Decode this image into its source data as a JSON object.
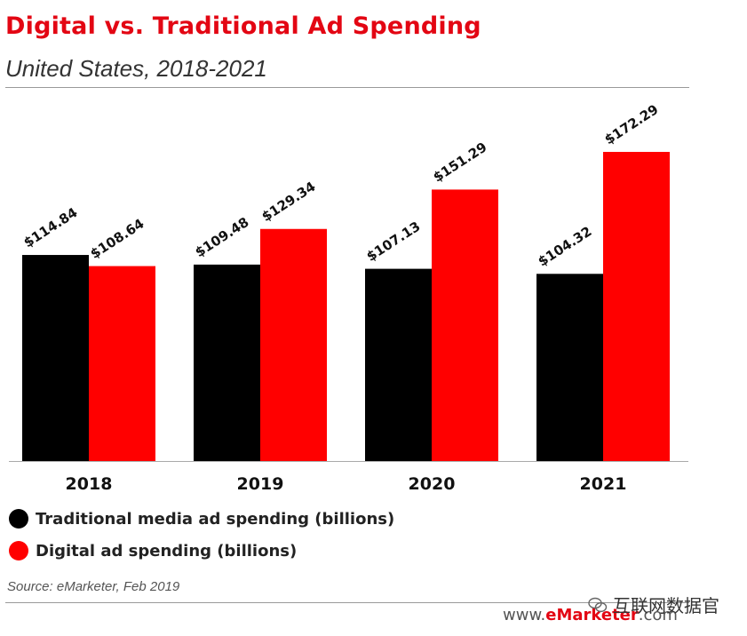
{
  "header": {
    "title": "Digital vs. Traditional Ad Spending",
    "subtitle": "United States, 2018-2021"
  },
  "chart_data": {
    "type": "bar",
    "title": "Digital vs. Traditional Ad Spending",
    "subtitle": "United States, 2018-2021",
    "categories": [
      "2018",
      "2019",
      "2020",
      "2021"
    ],
    "series": [
      {
        "name": "Traditional media ad spending (billions)",
        "color": "#000000",
        "values": [
          114.84,
          109.48,
          107.13,
          104.32
        ],
        "labels": [
          "$114.84",
          "$109.48",
          "$107.13",
          "$104.32"
        ]
      },
      {
        "name": "Digital ad spending (billions)",
        "color": "#ff0000",
        "values": [
          108.64,
          129.34,
          151.29,
          172.29
        ],
        "labels": [
          "$108.64",
          "$129.34",
          "$151.29",
          "$172.29"
        ]
      }
    ],
    "ylim": [
      0,
      200
    ],
    "grid": false,
    "legend_position": "bottom-left"
  },
  "legend": [
    {
      "label": "Traditional media ad spending (billions)",
      "color": "#000000"
    },
    {
      "label": "Digital ad spending (billions)",
      "color": "#ff0000"
    }
  ],
  "footer": {
    "source": "Source: eMarketer, Feb 2019",
    "brand_prefix": "www.",
    "brand_accent": "eMarketer",
    "brand_suffix": ".com",
    "watermark": "互联网数据官"
  }
}
